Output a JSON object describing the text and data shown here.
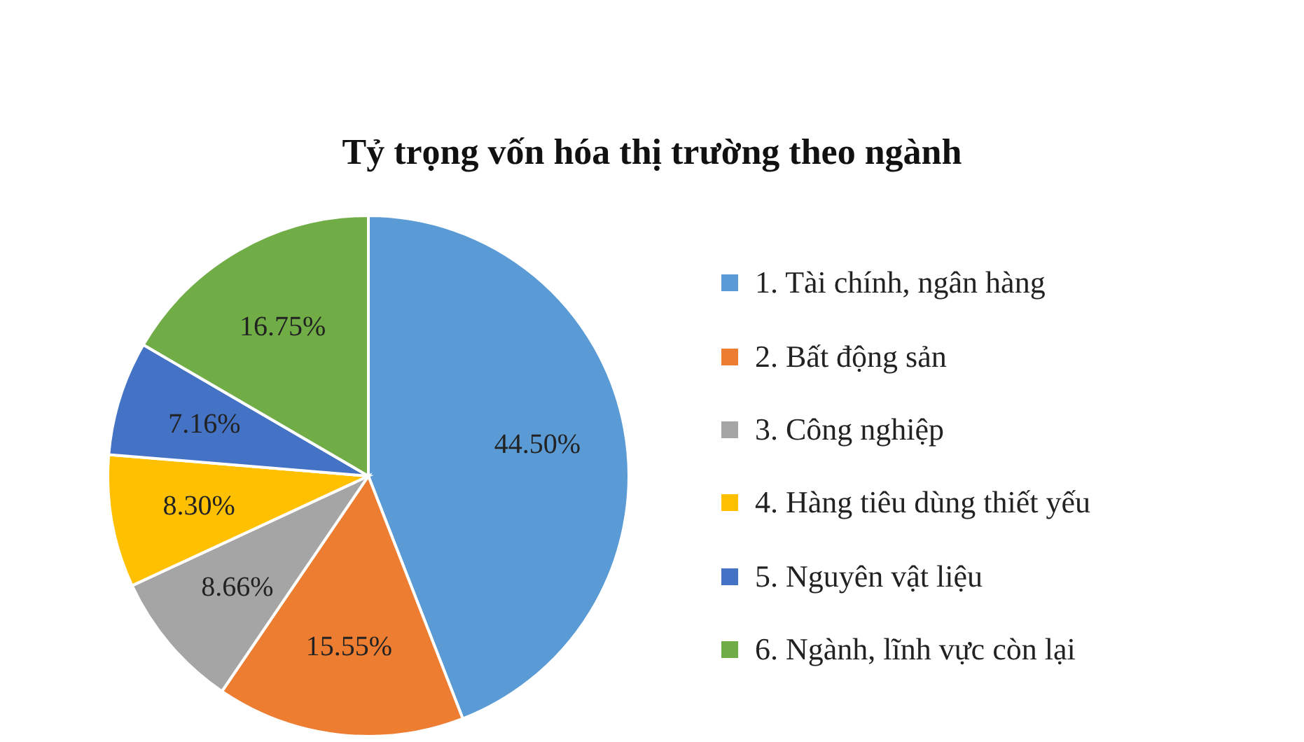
{
  "chart_data": {
    "type": "pie",
    "title": "Tỷ trọng vốn hóa thị trường theo ngành",
    "categories": [
      "1. Tài chính, ngân hàng",
      "2. Bất động sản",
      "3. Công nghiệp",
      "4. Hàng tiêu dùng thiết yếu",
      "5. Nguyên vật liệu",
      "6. Ngành, lĩnh vực còn lại"
    ],
    "values": [
      44.5,
      15.55,
      8.66,
      8.3,
      7.16,
      16.75
    ],
    "value_labels": [
      "44.50%",
      "15.55%",
      "8.66%",
      "8.30%",
      "7.16%",
      "16.75%"
    ],
    "colors": [
      "#5b9bd5",
      "#ed7d31",
      "#a5a5a5",
      "#ffc000",
      "#4472c4",
      "#70ad47"
    ],
    "legend": "right"
  }
}
